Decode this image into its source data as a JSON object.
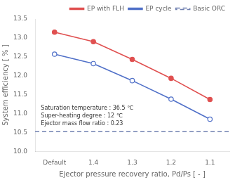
{
  "chart_data": {
    "type": "line",
    "categories": [
      "Default",
      "1.4",
      "1.3",
      "1.2",
      "1.1"
    ],
    "series": [
      {
        "name": "EP with FLH",
        "color": "#e05050",
        "values": [
          13.15,
          12.9,
          12.43,
          11.93,
          11.37
        ],
        "marker": "filled_circle",
        "line_style": "solid"
      },
      {
        "name": "EP cycle",
        "color": "#5070c8",
        "values": [
          12.57,
          12.32,
          11.87,
          11.38,
          10.85
        ],
        "marker": "open_circle",
        "line_style": "solid"
      }
    ],
    "reference_lines": [
      {
        "name": "Basic ORC",
        "value": 10.52,
        "color": "#7080b0",
        "line_style": "dashed"
      }
    ],
    "xlabel": "Ejector pressure recovery ratio, Pd/Ps [ - ]",
    "ylabel": "System efficiency [ % ]",
    "ylim": [
      10.0,
      13.5
    ],
    "yticks": [
      {
        "value": 10.0,
        "label": "10.0"
      },
      10.5,
      {
        "value": 11.0,
        "label": "11.0"
      },
      11.5,
      {
        "value": 12.0,
        "label": "12.0"
      },
      12.5,
      {
        "value": 13.0,
        "label": "13.0"
      },
      13.5
    ],
    "annotations": [
      "Saturation temperature : 36.5 ℃",
      "Super-heating degree : 12 ℃",
      "Ejector mass flow ratio : 0.23"
    ],
    "legend": "upper right",
    "grid": false
  }
}
